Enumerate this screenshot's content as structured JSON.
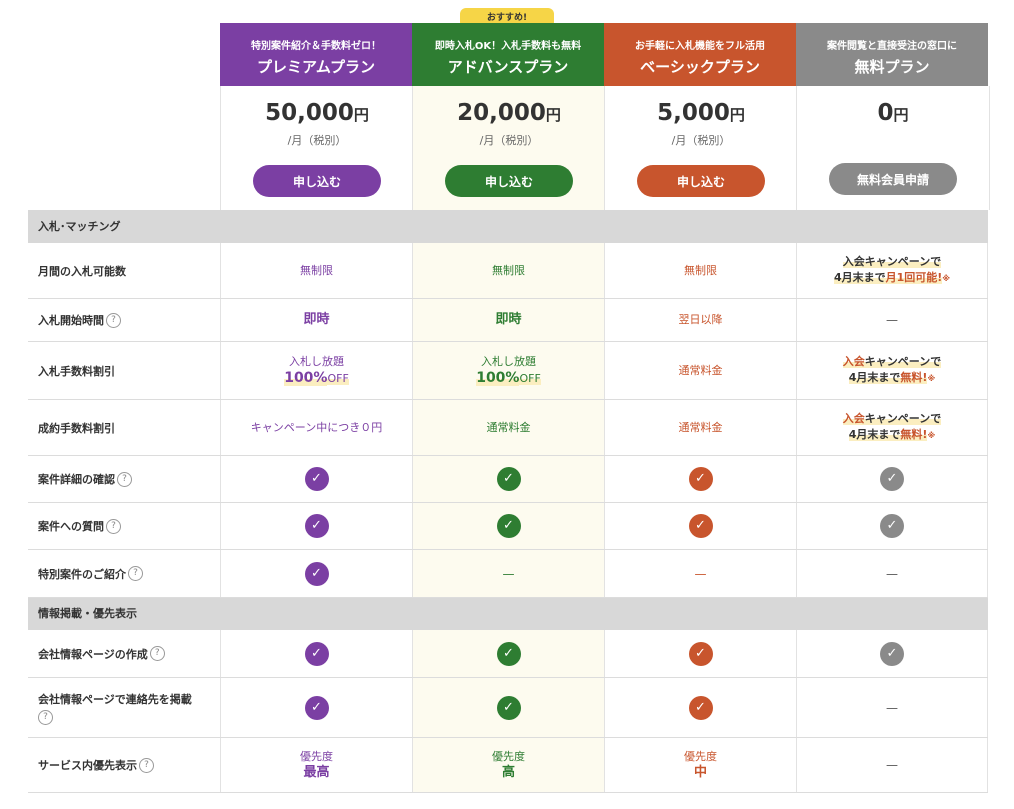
{
  "colors": {
    "premium": "#7b3fa3",
    "advance": "#2e7d32",
    "basic": "#c8552d",
    "free": "#8a8a8a"
  },
  "recommend_badge": "おすすめ!",
  "plans": [
    {
      "tag": "特別案件紹介＆手数料ゼロ！",
      "name": "プレミアムプラン",
      "price": "50,000",
      "unit": "円",
      "per": "/月（税別）",
      "button": "申し込む"
    },
    {
      "tag": "即時入札OK！入札手数料も無料",
      "name": "アドバンスプラン",
      "price": "20,000",
      "unit": "円",
      "per": "/月（税別）",
      "button": "申し込む"
    },
    {
      "tag": "お手軽に入札機能をフル活用",
      "name": "ベーシックプラン",
      "price": "5,000",
      "unit": "円",
      "per": "/月（税別）",
      "button": "申し込む"
    },
    {
      "tag": "案件閲覧と直接受注の窓口に",
      "name": "無料プラン",
      "price": "0",
      "unit": "円",
      "per": "",
      "button": "無料会員申請"
    }
  ],
  "sections": {
    "bidding": "入札･マッチング",
    "listing": "情報掲載・優先表示"
  },
  "rows": {
    "bid_count": {
      "label": "月間の入札可能数",
      "premium": "無制限",
      "advance": "無制限",
      "basic": "無制限",
      "free_line1": "入会キャンペーンで",
      "free_line2a": "4月末まで",
      "free_line2b": "月1回可能!",
      "free_note": "※"
    },
    "bid_start": {
      "label": "入札開始時間",
      "premium": "即時",
      "advance": "即時",
      "basic": "翌日以降",
      "free": "—"
    },
    "bid_fee": {
      "label": "入札手数料割引",
      "premium_l1": "入札し放題",
      "premium_l2": "100%",
      "premium_off": "OFF",
      "advance_l1": "入札し放題",
      "advance_l2": "100%",
      "advance_off": "OFF",
      "basic": "通常料金",
      "free_line1a": "入会",
      "free_line1b": "キャンペーンで",
      "free_line2a": "4月末まで",
      "free_line2b": "無料!",
      "free_note": "※"
    },
    "contract_fee": {
      "label": "成約手数料割引",
      "premium": "キャンペーン中につき０円",
      "advance": "通常料金",
      "basic": "通常料金",
      "free_line1a": "入会",
      "free_line1b": "キャンペーンで",
      "free_line2a": "4月末まで",
      "free_line2b": "無料!",
      "free_note": "※"
    },
    "detail": {
      "label": "案件詳細の確認",
      "free": "✓"
    },
    "question": {
      "label": "案件への質問"
    },
    "special": {
      "label": "特別案件のご紹介",
      "advance": "—",
      "basic": "—",
      "free": "—"
    },
    "company_page": {
      "label": "会社情報ページの作成"
    },
    "contact": {
      "label": "会社情報ページで連絡先を掲載",
      "free": "—"
    },
    "priority": {
      "label": "サービス内優先表示",
      "caption": "優先度",
      "premium": "最高",
      "advance": "高",
      "basic": "中",
      "free": "—"
    }
  },
  "help_icon": "?",
  "check_icon": "✓"
}
